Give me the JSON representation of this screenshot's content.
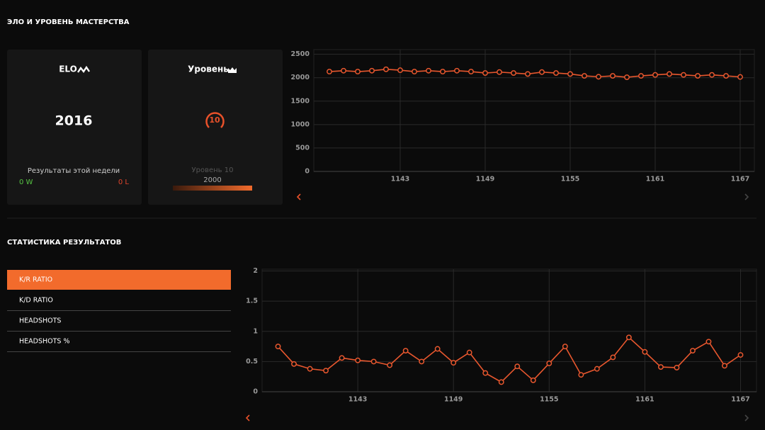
{
  "header": {
    "title": "ЭЛО И УРОВЕНЬ МАСТЕРСТВА"
  },
  "elo_card": {
    "title": "ELO",
    "value": "2016",
    "week_label": "Результаты этой недели",
    "wins": "0 W",
    "losses": "0 L"
  },
  "level_card": {
    "title": "Уровень",
    "level": "10",
    "level_label": "Уровень 10",
    "points": "2000"
  },
  "stats": {
    "title": "СТАТИСТИКА РЕЗУЛЬТАТОВ",
    "tabs": [
      "K/R RATIO",
      "K/D RATIO",
      "HEADSHOTS",
      "HEADSHOTS %"
    ]
  },
  "chart_data": [
    {
      "type": "line",
      "color": "#e8572e",
      "grid": true,
      "x": [
        1138,
        1139,
        1140,
        1141,
        1142,
        1143,
        1144,
        1145,
        1146,
        1147,
        1148,
        1149,
        1150,
        1151,
        1152,
        1153,
        1154,
        1155,
        1156,
        1157,
        1158,
        1159,
        1160,
        1161,
        1162,
        1163,
        1164,
        1165,
        1166,
        1167
      ],
      "values": [
        2130,
        2150,
        2130,
        2150,
        2180,
        2160,
        2130,
        2150,
        2130,
        2150,
        2130,
        2100,
        2120,
        2100,
        2080,
        2120,
        2100,
        2080,
        2040,
        2020,
        2040,
        2010,
        2040,
        2060,
        2080,
        2060,
        2040,
        2060,
        2040,
        2016
      ],
      "xlim": [
        1136.9,
        1168
      ],
      "xticks": [
        1143,
        1149,
        1155,
        1161,
        1167
      ],
      "ylim": [
        0,
        2600
      ],
      "yticks": [
        0,
        500,
        1000,
        1500,
        2000,
        2500
      ]
    },
    {
      "type": "line",
      "color": "#e8572e",
      "grid": true,
      "x": [
        1138,
        1139,
        1140,
        1141,
        1142,
        1143,
        1144,
        1145,
        1146,
        1147,
        1148,
        1149,
        1150,
        1151,
        1152,
        1153,
        1154,
        1155,
        1156,
        1157,
        1158,
        1159,
        1160,
        1161,
        1162,
        1163,
        1164,
        1165,
        1166,
        1167
      ],
      "values": [
        0.75,
        0.46,
        0.38,
        0.35,
        0.56,
        0.52,
        0.5,
        0.44,
        0.68,
        0.5,
        0.71,
        0.48,
        0.65,
        0.31,
        0.16,
        0.42,
        0.19,
        0.47,
        0.75,
        0.28,
        0.38,
        0.57,
        0.9,
        0.66,
        0.41,
        0.4,
        0.68,
        0.83,
        0.43,
        0.61
      ],
      "xlim": [
        1137,
        1168
      ],
      "xticks": [
        1143,
        1149,
        1155,
        1161,
        1167
      ],
      "ylim": [
        0,
        2.03
      ],
      "yticks": [
        0,
        0.5,
        1,
        1.5,
        2
      ]
    }
  ]
}
